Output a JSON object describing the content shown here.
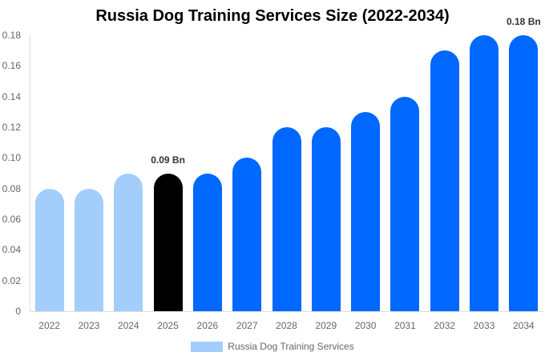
{
  "chart_data": {
    "type": "bar",
    "title": "Russia Dog Training Services Size (2022-2034)",
    "xlabel": "",
    "ylabel": "",
    "ylim": [
      0,
      0.18
    ],
    "yticks": [
      "0",
      "0.02",
      "0.04",
      "0.06",
      "0.08",
      "0.10",
      "0.12",
      "0.14",
      "0.16",
      "0.18"
    ],
    "categories": [
      "2022",
      "2023",
      "2024",
      "2025",
      "2026",
      "2027",
      "2028",
      "2029",
      "2030",
      "2031",
      "2032",
      "2033",
      "2034"
    ],
    "series": [
      {
        "name": "Russia Dog Training Services",
        "values": [
          0.08,
          0.08,
          0.09,
          0.09,
          0.09,
          0.1,
          0.12,
          0.12,
          0.13,
          0.14,
          0.17,
          0.18,
          0.18
        ]
      }
    ],
    "bar_colors": [
      "#a3cefc",
      "#a3cefc",
      "#a3cefc",
      "#000000",
      "#0068ff",
      "#0068ff",
      "#0068ff",
      "#0068ff",
      "#0068ff",
      "#0068ff",
      "#0068ff",
      "#0068ff",
      "#0068ff"
    ],
    "annotations": [
      {
        "category": "2025",
        "text": "0.09 Bn"
      },
      {
        "category": "2034",
        "text": "0.18 Bn"
      }
    ],
    "grid": false,
    "legend_position": "bottom",
    "legend_color": "#a3cefc"
  }
}
